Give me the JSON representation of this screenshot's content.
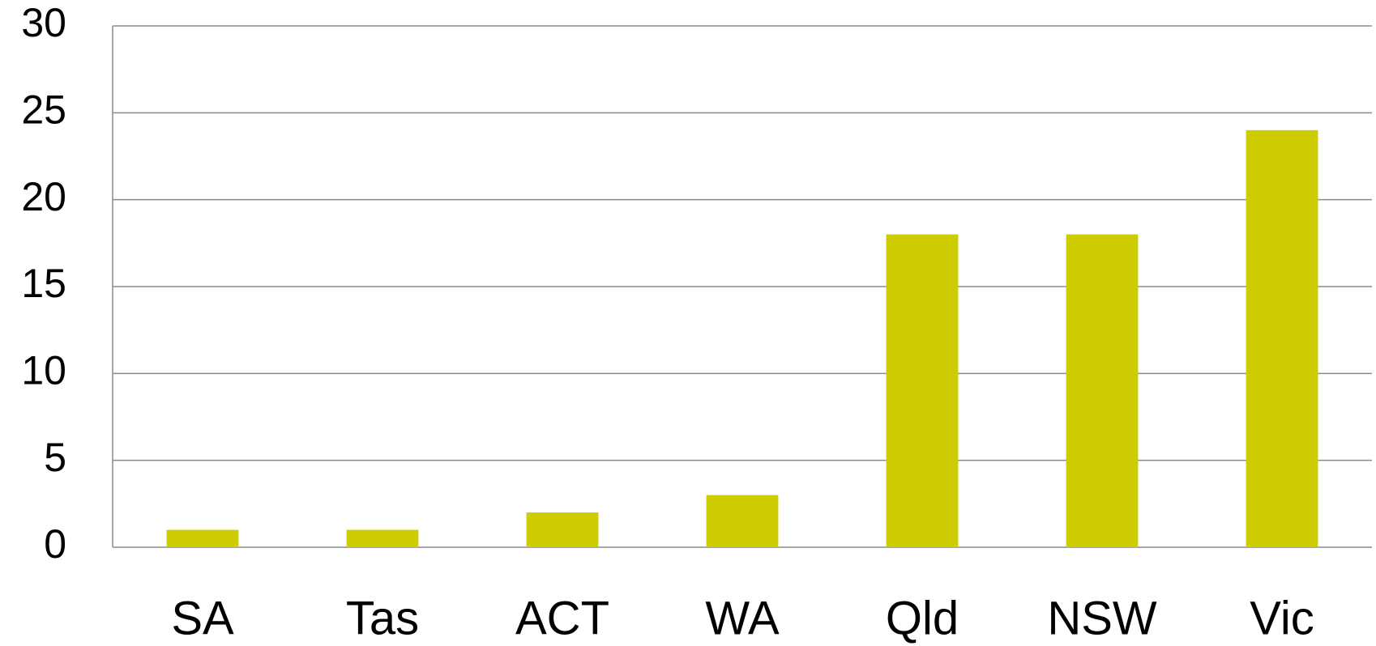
{
  "chart_data": {
    "type": "bar",
    "categories": [
      "SA",
      "Tas",
      "ACT",
      "WA",
      "Qld",
      "NSW",
      "Vic"
    ],
    "values": [
      1,
      1,
      2,
      3,
      18,
      18,
      24
    ],
    "color": "#cccc00",
    "ylim": [
      0,
      30
    ],
    "yticks": [
      0,
      5,
      10,
      15,
      20,
      25,
      30
    ],
    "grid": true
  }
}
